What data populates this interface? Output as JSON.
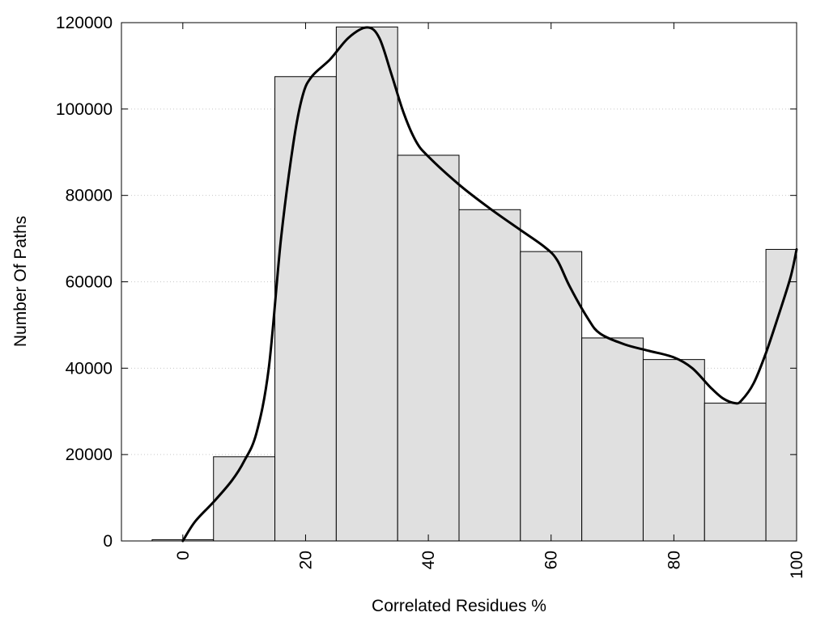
{
  "chart_data": {
    "type": "bar",
    "title": "",
    "xlabel": "Correlated Residues %",
    "ylabel": "Number Of Paths",
    "xlim": [
      -10,
      100
    ],
    "ylim": [
      0,
      120000
    ],
    "grid": "horizontal dotted",
    "bar_color": "#e0e0e0",
    "bar_edge_color": "#000000",
    "line_color": "#000000",
    "x_ticks": [
      "0",
      "20",
      "40",
      "60",
      "80",
      "100"
    ],
    "y_ticks": [
      "0",
      "20000",
      "40000",
      "60000",
      "80000",
      "100000",
      "120000"
    ],
    "bins": [
      {
        "x": 0,
        "value": 300
      },
      {
        "x": 10,
        "value": 19500
      },
      {
        "x": 20,
        "value": 107500
      },
      {
        "x": 30,
        "value": 119000
      },
      {
        "x": 40,
        "value": 89300
      },
      {
        "x": 50,
        "value": 76700
      },
      {
        "x": 60,
        "value": 67000
      },
      {
        "x": 70,
        "value": 47000
      },
      {
        "x": 80,
        "value": 42000
      },
      {
        "x": 90,
        "value": 31900
      },
      {
        "x": 100,
        "value": 67500
      }
    ],
    "bin_width": 10,
    "curve": [
      [
        0,
        0
      ],
      [
        2,
        4500
      ],
      [
        5,
        9000
      ],
      [
        8,
        14000
      ],
      [
        10,
        18500
      ],
      [
        12,
        25000
      ],
      [
        14,
        40000
      ],
      [
        16,
        70000
      ],
      [
        18,
        92000
      ],
      [
        19.5,
        103000
      ],
      [
        21,
        107500
      ],
      [
        24,
        111500
      ],
      [
        27,
        116500
      ],
      [
        30,
        118900
      ],
      [
        32,
        116500
      ],
      [
        34,
        108000
      ],
      [
        36,
        99000
      ],
      [
        38,
        92500
      ],
      [
        40,
        89000
      ],
      [
        45,
        82500
      ],
      [
        50,
        77000
      ],
      [
        55,
        72000
      ],
      [
        59,
        68000
      ],
      [
        61,
        65000
      ],
      [
        63,
        59000
      ],
      [
        66,
        51500
      ],
      [
        68,
        48000
      ],
      [
        72,
        45500
      ],
      [
        76,
        44000
      ],
      [
        80,
        42500
      ],
      [
        83,
        40000
      ],
      [
        86,
        35500
      ],
      [
        88,
        33000
      ],
      [
        90,
        31900
      ],
      [
        91,
        32500
      ],
      [
        93,
        36500
      ],
      [
        95,
        43500
      ],
      [
        97,
        52000
      ],
      [
        99,
        61000
      ],
      [
        100,
        67500
      ]
    ]
  }
}
